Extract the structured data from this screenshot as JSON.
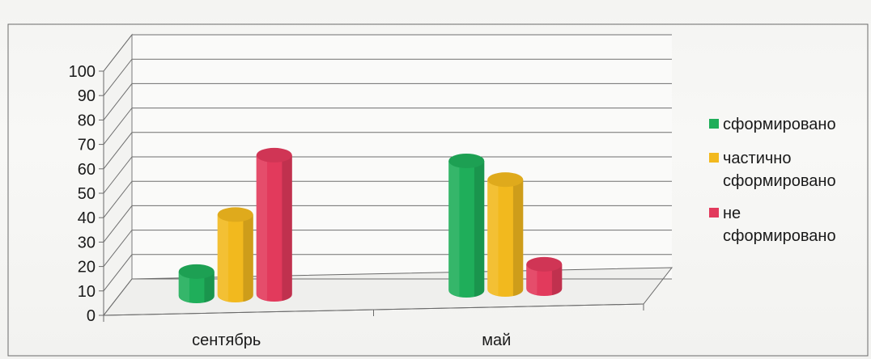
{
  "chart_data": {
    "type": "bar",
    "title": "",
    "xlabel": "",
    "ylabel": "",
    "categories": [
      "сентябрь",
      "май"
    ],
    "series": [
      {
        "name": "сформировано",
        "values": [
          10,
          53
        ],
        "color": "#1fae5a"
      },
      {
        "name": "частично сформировано",
        "values": [
          33,
          45
        ],
        "color": "#f2b91e"
      },
      {
        "name": "не сформировано",
        "values": [
          57,
          10
        ],
        "color": "#e23a5c"
      }
    ],
    "ylim": [
      0,
      100
    ],
    "yticks": [
      0,
      10,
      20,
      30,
      40,
      50,
      60,
      70,
      80,
      90,
      100
    ],
    "grid": true,
    "legend_position": "right",
    "legend_lines": [
      [
        "сформировано"
      ],
      [
        "частично",
        "сформировано"
      ],
      [
        "не",
        "сформировано"
      ]
    ]
  }
}
